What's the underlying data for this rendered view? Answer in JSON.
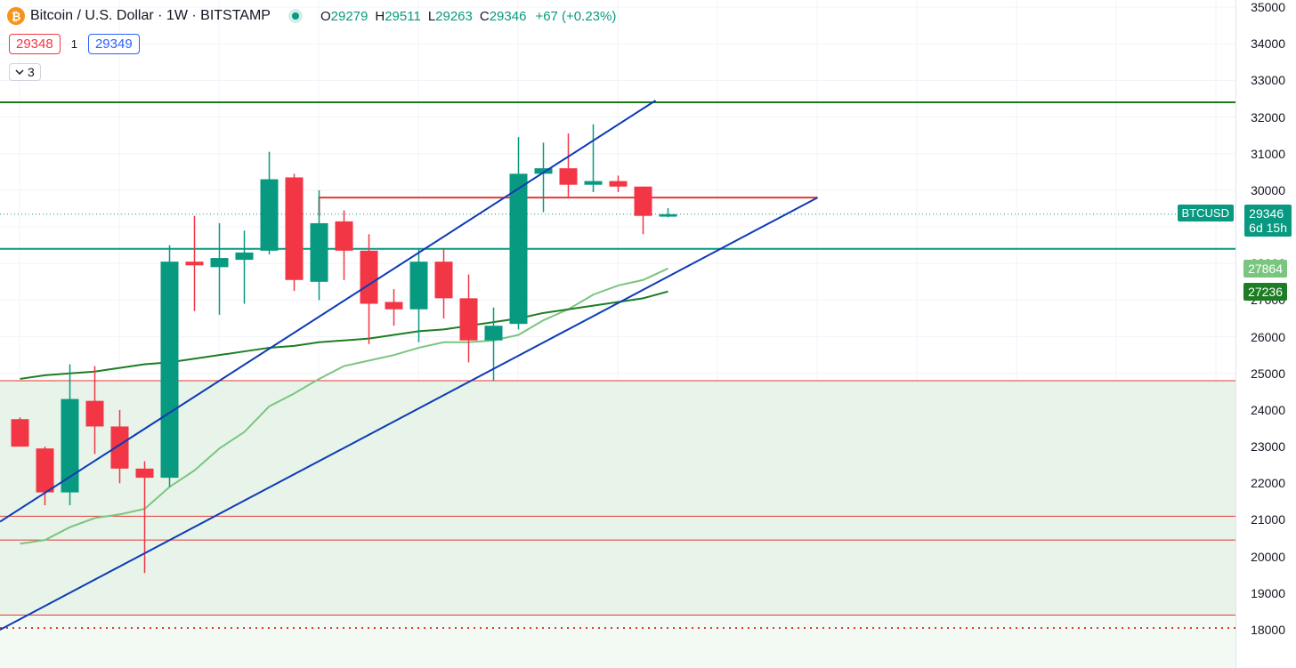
{
  "header": {
    "logo_glyph": "₿",
    "title": "Bitcoin / U.S. Dollar · 1W · BITSTAMP",
    "ohlc": {
      "o_label": "O",
      "o": "29279",
      "h_label": "H",
      "h": "29511",
      "l_label": "L",
      "l": "29263",
      "c_label": "C",
      "c": "29346",
      "change": "+67 (+0.23%)"
    }
  },
  "order_panel": {
    "sell_price": "29348",
    "spread": "1",
    "buy_price": "29349"
  },
  "indicators_toggle": {
    "icon": "chevron-down-icon",
    "count": "3"
  },
  "price_axis": {
    "tick_labels": [
      "35000",
      "34000",
      "33000",
      "32000",
      "31000",
      "30000",
      "29000",
      "28000",
      "27000",
      "26000",
      "25000",
      "24000",
      "23000",
      "22000",
      "21000",
      "20000",
      "19000",
      "18000"
    ],
    "symbol_label": "BTCUSD",
    "last_price": "29346",
    "countdown": "6d 15h",
    "ma_fast_value": "27864",
    "ma_slow_value": "27236"
  },
  "colors": {
    "up": "#089981",
    "down": "#f23645",
    "trendline": "#0d3bb5",
    "ma_fast": "#7ac57f",
    "ma_slow": "#1e7d24",
    "support": "#e53935",
    "resistance": "#1b7a1b",
    "level": "#089981",
    "zone_fill": "#e8f4ea"
  },
  "chart_data": {
    "type": "candlestick",
    "ylim": [
      17600,
      35100
    ],
    "candles": [
      {
        "o": 23750,
        "h": 23800,
        "l": 23000,
        "c": 23000
      },
      {
        "o": 22950,
        "h": 23000,
        "l": 21400,
        "c": 21750
      },
      {
        "o": 21750,
        "h": 25250,
        "l": 21400,
        "c": 24300
      },
      {
        "o": 24250,
        "h": 25200,
        "l": 22800,
        "c": 23550
      },
      {
        "o": 23550,
        "h": 24000,
        "l": 22000,
        "c": 22400
      },
      {
        "o": 22400,
        "h": 22600,
        "l": 19550,
        "c": 22150
      },
      {
        "o": 22150,
        "h": 28500,
        "l": 21900,
        "c": 28050
      },
      {
        "o": 28050,
        "h": 29300,
        "l": 26700,
        "c": 27950
      },
      {
        "o": 27900,
        "h": 29100,
        "l": 26600,
        "c": 28150
      },
      {
        "o": 28100,
        "h": 28900,
        "l": 26900,
        "c": 28300
      },
      {
        "o": 28350,
        "h": 31050,
        "l": 28250,
        "c": 30300
      },
      {
        "o": 30350,
        "h": 30450,
        "l": 27250,
        "c": 27550
      },
      {
        "o": 27500,
        "h": 30000,
        "l": 27000,
        "c": 29100
      },
      {
        "o": 29150,
        "h": 29450,
        "l": 27550,
        "c": 28350
      },
      {
        "o": 28350,
        "h": 28800,
        "l": 25800,
        "c": 26900
      },
      {
        "o": 26950,
        "h": 27300,
        "l": 26300,
        "c": 26750
      },
      {
        "o": 26750,
        "h": 28400,
        "l": 25850,
        "c": 28050
      },
      {
        "o": 28050,
        "h": 28400,
        "l": 26500,
        "c": 27050
      },
      {
        "o": 27050,
        "h": 27700,
        "l": 25300,
        "c": 25900
      },
      {
        "o": 25900,
        "h": 26800,
        "l": 24800,
        "c": 26300
      },
      {
        "o": 26350,
        "h": 31450,
        "l": 26200,
        "c": 30450
      },
      {
        "o": 30450,
        "h": 31300,
        "l": 29400,
        "c": 30600
      },
      {
        "o": 30600,
        "h": 31550,
        "l": 29800,
        "c": 30150
      },
      {
        "o": 30150,
        "h": 31800,
        "l": 29950,
        "c": 30250
      },
      {
        "o": 30250,
        "h": 30400,
        "l": 29950,
        "c": 30100
      },
      {
        "o": 30100,
        "h": 30100,
        "l": 28800,
        "c": 29300
      },
      {
        "o": 29279,
        "h": 29511,
        "l": 29263,
        "c": 29346
      }
    ],
    "ma_fast": [
      20350,
      20450,
      20800,
      21050,
      21150,
      21300,
      21900,
      22350,
      22950,
      23400,
      24100,
      24450,
      24850,
      25200,
      25350,
      25500,
      25700,
      25850,
      25850,
      25900,
      26050,
      26450,
      26750,
      27150,
      27400,
      27550,
      27864
    ],
    "ma_slow": [
      24850,
      24950,
      25000,
      25050,
      25150,
      25250,
      25300,
      25400,
      25500,
      25600,
      25700,
      25750,
      25850,
      25900,
      25950,
      26050,
      26150,
      26200,
      26300,
      26400,
      26500,
      26650,
      26750,
      26850,
      26950,
      27050,
      27236
    ],
    "horizontal_lines": [
      {
        "price": 32400,
        "color": "#1b7a1b"
      },
      {
        "price": 28400,
        "color": "#089981"
      },
      {
        "price": 24800,
        "color": "#e53935"
      },
      {
        "price": 21100,
        "color": "#e53935"
      },
      {
        "price": 20450,
        "color": "#e53935"
      },
      {
        "price": 18400,
        "color": "#e53935"
      }
    ],
    "partial_level": {
      "price": 29800,
      "from_index": 12,
      "to_index": 32
    },
    "last_price_line": 29346,
    "dotted_level": 18050,
    "zone": {
      "from": 18400,
      "to": 24800
    },
    "trendlines": [
      {
        "x1": 0,
        "y1": 20950,
        "x2": 25.5,
        "y2": 32450
      },
      {
        "x1": 0,
        "y1": 18000,
        "x2": 32,
        "y2": 29800
      }
    ]
  }
}
